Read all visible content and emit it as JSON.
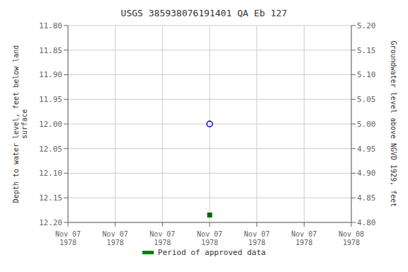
{
  "chart_data": {
    "type": "scatter",
    "title": "USGS 385938076191401 QA Eb 127",
    "ylabel": "Depth to water level, feet below land\nsurface",
    "y2label": "Groundwater level above NGVD 1929, feet",
    "categories": [
      "Nov 07\n1978",
      "Nov 07\n1978",
      "Nov 07\n1978",
      "Nov 07\n1978",
      "Nov 07\n1978",
      "Nov 07\n1978",
      "Nov 08\n1978"
    ],
    "series": [
      {
        "color": "#0000cc",
        "marker": "open_circle",
        "values": [
          null,
          null,
          null,
          12.0,
          null,
          null,
          null
        ]
      },
      {
        "color": "#006400",
        "marker": "square",
        "values": [
          null,
          null,
          null,
          12.185,
          null,
          null,
          null
        ]
      },
      {
        "name": "Period of approved data",
        "color": "#008000",
        "axis": "y2",
        "values": [
          null,
          null,
          null,
          null,
          null,
          null,
          null
        ]
      }
    ],
    "ylim": [
      12.2,
      11.8
    ],
    "yticks": [
      {
        "value": 11.8,
        "label": "11.80"
      },
      {
        "value": 11.85,
        "label": "11.85"
      },
      {
        "value": 11.9,
        "label": "11.90"
      },
      {
        "value": 11.95,
        "label": "11.95"
      },
      {
        "value": 12.0,
        "label": "12.00"
      },
      {
        "value": 12.05,
        "label": "12.05"
      },
      {
        "value": 12.1,
        "label": "12.10"
      },
      {
        "value": 12.15,
        "label": "12.15"
      },
      {
        "value": 12.2,
        "label": "12.20"
      }
    ],
    "y2lim": [
      4.8,
      5.2
    ],
    "y2ticks": [
      {
        "value": 4.8,
        "label": "4.80"
      },
      {
        "value": 4.85,
        "label": "4.85"
      },
      {
        "value": 4.9,
        "label": "4.90"
      },
      {
        "value": 4.95,
        "label": "4.95"
      },
      {
        "value": 5.0,
        "label": "5.00"
      },
      {
        "value": 5.05,
        "label": "5.05"
      },
      {
        "value": 5.1,
        "label": "5.10"
      },
      {
        "value": 5.15,
        "label": "5.15"
      },
      {
        "value": 5.2,
        "label": "5.20"
      }
    ],
    "grid": true,
    "legend": "bottom"
  }
}
